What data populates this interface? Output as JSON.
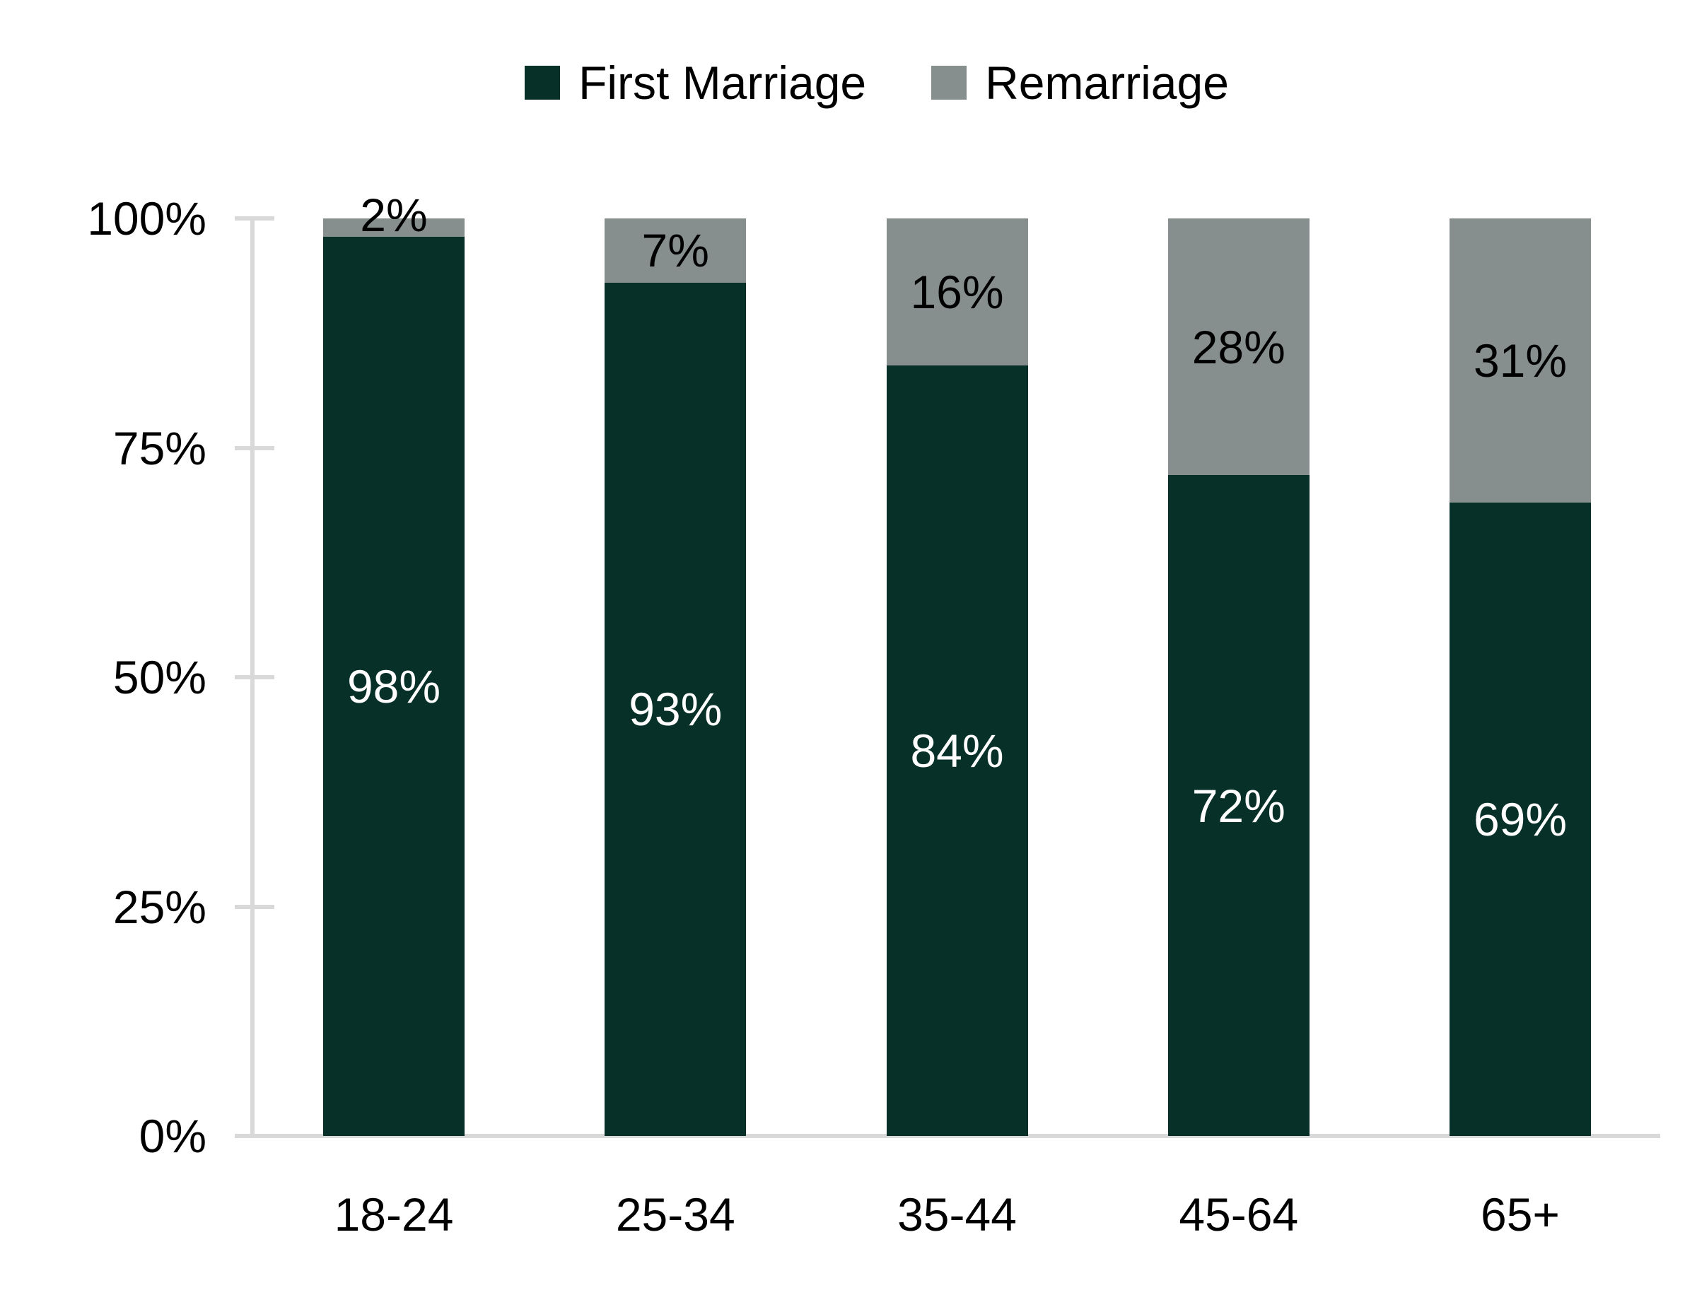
{
  "chart_data": {
    "type": "bar",
    "stacked": true,
    "orientation": "vertical",
    "categories": [
      "18-24",
      "25-34",
      "35-44",
      "45-64",
      "65+"
    ],
    "series": [
      {
        "name": "First Marriage",
        "color": "#073029",
        "values": [
          98,
          93,
          84,
          72,
          69
        ],
        "data_labels": [
          "98%",
          "93%",
          "84%",
          "72%",
          "69%"
        ],
        "label_color": "#ffffff"
      },
      {
        "name": "Remarriage",
        "color": "#868f8e",
        "values": [
          2,
          7,
          16,
          28,
          31
        ],
        "data_labels": [
          "2%",
          "7%",
          "16%",
          "28%",
          "31%"
        ],
        "label_color": "#000000"
      }
    ],
    "title": "",
    "xlabel": "",
    "ylabel": "",
    "ylim": [
      0,
      100
    ],
    "yticks": [
      {
        "value": 0,
        "label": "0%"
      },
      {
        "value": 25,
        "label": "25%"
      },
      {
        "value": 50,
        "label": "50%"
      },
      {
        "value": 75,
        "label": "75%"
      },
      {
        "value": 100,
        "label": "100%"
      }
    ],
    "grid": false,
    "legend_position": "top-center",
    "axis_color": "#d9d9d9",
    "text_color": "#000000",
    "background": "#ffffff"
  }
}
